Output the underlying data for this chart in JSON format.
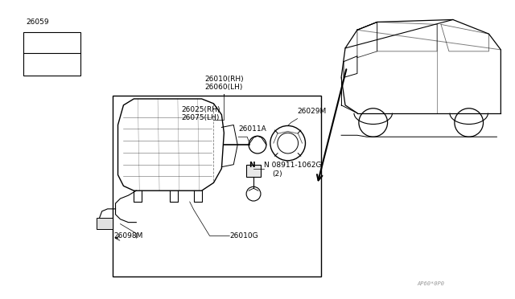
{
  "bg_color": "#ffffff",
  "fig_width": 6.4,
  "fig_height": 3.72,
  "dpi": 100,
  "watermark_text": "AP60*0P0",
  "label_26059": "26059",
  "label_26010rh": "26010(RH)",
  "label_26060lh": "26060(LH)",
  "label_26025rh": "26025(RH)",
  "label_26075lh": "26075(LH)",
  "label_26029M": "26029M",
  "label_26011A": "26011A",
  "label_08911": "N 08911-1062G",
  "label_08911b": "(2)",
  "label_26098M": "26098M",
  "label_26010G": "26010G",
  "line_color": "#000000",
  "text_color": "#000000",
  "font_size": 6.5
}
